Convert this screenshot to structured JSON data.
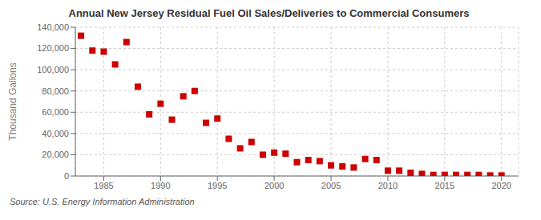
{
  "chart_data": {
    "type": "scatter",
    "title": "Annual New Jersey Residual Fuel Oil Sales/Deliveries to Commercial Consumers",
    "ylabel": "Thousand Gallons",
    "annotation": "Source: U.S. Energy Information Administration",
    "color": "#cc0000",
    "marker": "square",
    "grid": true,
    "x": [
      1983,
      1984,
      1985,
      1986,
      1987,
      1988,
      1989,
      1990,
      1991,
      1992,
      1993,
      1994,
      1995,
      1996,
      1997,
      1998,
      1999,
      2000,
      2001,
      2002,
      2003,
      2004,
      2005,
      2006,
      2007,
      2008,
      2009,
      2010,
      2011,
      2012,
      2013,
      2014,
      2015,
      2016,
      2017,
      2018,
      2019,
      2020
    ],
    "values": [
      132000,
      118000,
      117000,
      105000,
      126000,
      84000,
      58000,
      68000,
      53000,
      75000,
      80000,
      50000,
      54000,
      35000,
      26000,
      32000,
      20000,
      22000,
      21000,
      13000,
      15000,
      14000,
      10000,
      9000,
      8000,
      16000,
      15000,
      5000,
      5000,
      3000,
      2000,
      1000,
      1000,
      1000,
      1000,
      1000,
      500,
      500
    ],
    "xlim": [
      1982.5,
      2021.5
    ],
    "xticks": [
      1985,
      1990,
      1995,
      2000,
      2005,
      2010,
      2015,
      2020
    ],
    "ylim": [
      0,
      140000
    ],
    "yticks": [
      0,
      {
        "value": 20000,
        "label": "20,000"
      },
      {
        "value": 40000,
        "label": "40,000"
      },
      {
        "value": 60000,
        "label": "60,000"
      },
      {
        "value": 80000,
        "label": "80,000"
      },
      {
        "value": 100000,
        "label": "100,000"
      },
      {
        "value": 120000,
        "label": "120,000"
      },
      {
        "value": 140000,
        "label": "140,000"
      }
    ]
  }
}
